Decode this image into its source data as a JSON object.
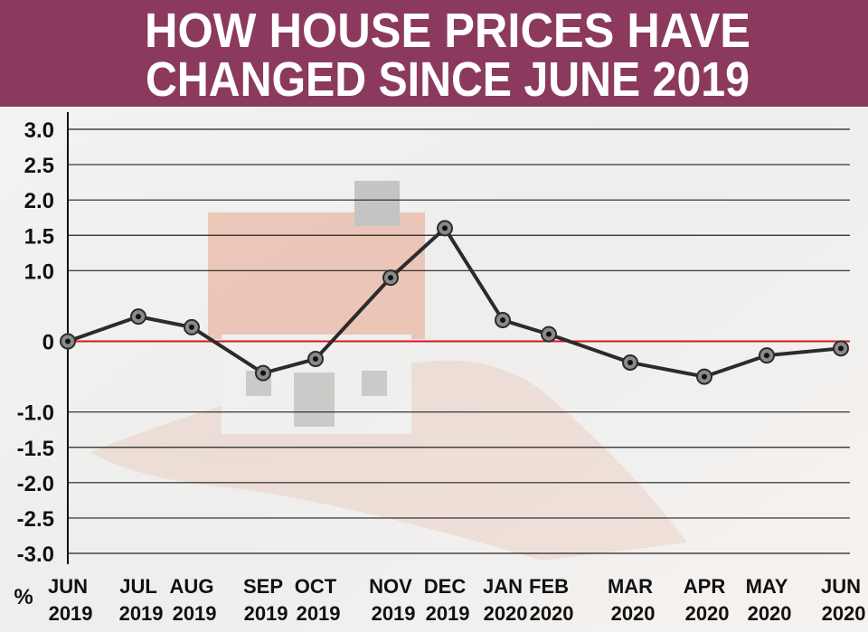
{
  "chart_data": {
    "type": "line",
    "title": [
      "HOW HOUSE PRICES HAVE",
      "CHANGED SINCE JUNE 2019"
    ],
    "y_label": "%",
    "categories": [
      "JUN 2019",
      "JUL 2019",
      "AUG 2019",
      "SEP 2019",
      "OCT 2019",
      "NOV 2019",
      "DEC 2019",
      "JAN 2020",
      "FEB 2020",
      "MAR 2020",
      "APR 2020",
      "MAY 2020",
      "JUN 2020"
    ],
    "values": [
      0,
      0.35,
      0.2,
      -0.45,
      -0.25,
      0.9,
      1.6,
      0.3,
      0.1,
      -0.3,
      -0.5,
      -0.2,
      -0.1
    ],
    "color": "#2b2b2b",
    "marker_color": "#8a8a8a",
    "zero_line_color": "#e0141e",
    "ylim": [
      -3,
      3
    ],
    "yticks": [
      {
        "value": -3,
        "label": "-3.0"
      },
      {
        "value": -2.5,
        "label": "-2.5"
      },
      {
        "value": -2,
        "label": "-2.0"
      },
      {
        "value": -1.5,
        "label": "-1.5"
      },
      {
        "value": -1,
        "label": "-1.0"
      },
      0,
      {
        "value": 1,
        "label": "1.0"
      },
      {
        "value": 1.5,
        "label": "1.5"
      },
      {
        "value": 2,
        "label": "2.0"
      },
      {
        "value": 2.5,
        "label": "2.5"
      },
      {
        "value": 3,
        "label": "3.0"
      }
    ],
    "grid": true
  }
}
